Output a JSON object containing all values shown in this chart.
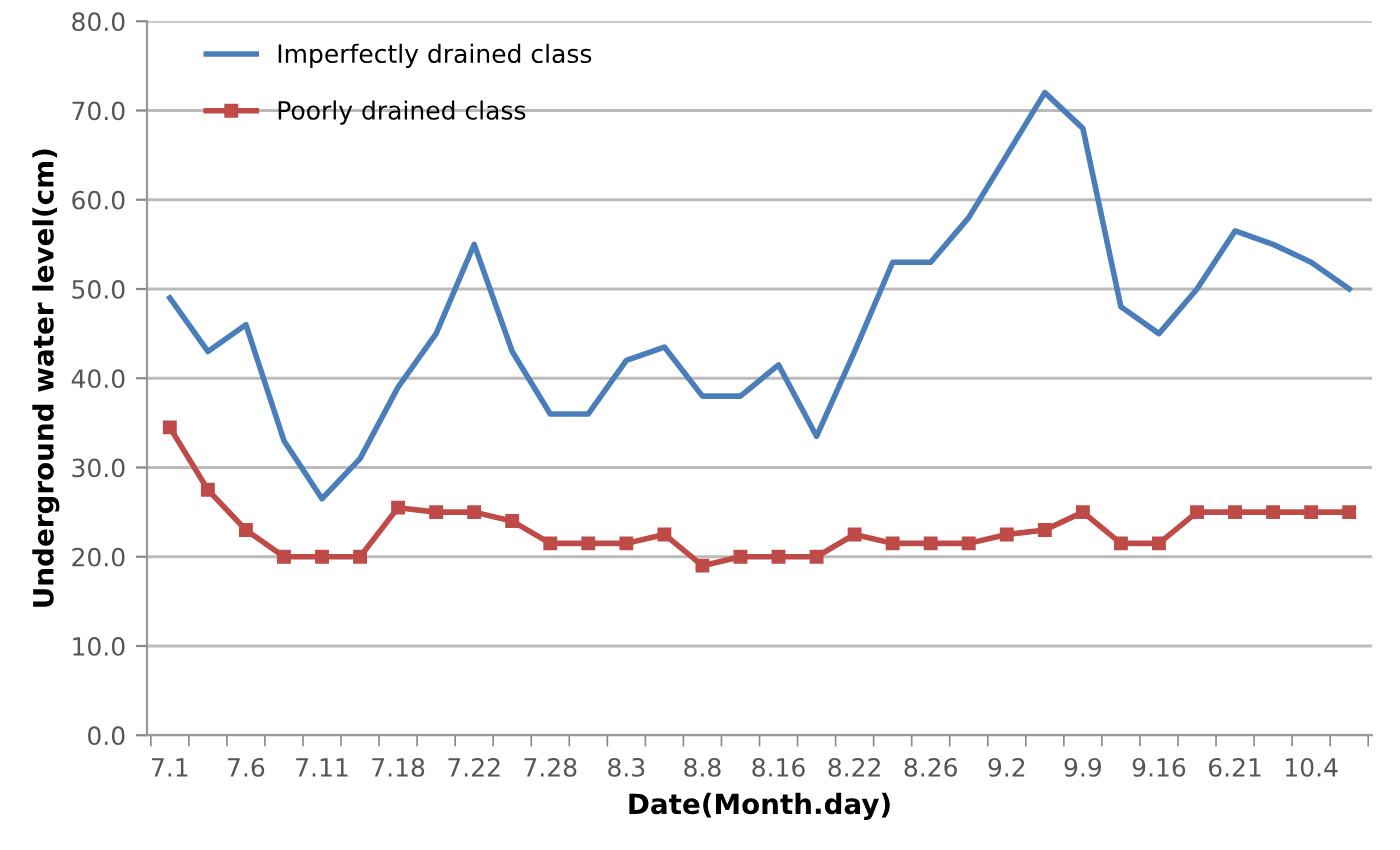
{
  "chart_data": {
    "type": "line",
    "xlabel": "Date(Month.day)",
    "ylabel": "Underground water level(cm)",
    "categories": [
      "7.1",
      null,
      "7.6",
      null,
      "7.11",
      null,
      "7.18",
      null,
      "7.22",
      null,
      "7.28",
      null,
      "8.3",
      null,
      "8.8",
      null,
      "8.16",
      null,
      "8.22",
      null,
      "8.26",
      null,
      "9.2",
      null,
      "9.9",
      null,
      "9.16",
      null,
      "6.21",
      null,
      "10.4",
      null
    ],
    "series": [
      {
        "name": "Imperfectly drained class",
        "color": "#4a7ebb",
        "marker": "none",
        "values": [
          49,
          43,
          46,
          33,
          26.5,
          31,
          39,
          45,
          55,
          43,
          36,
          36,
          42,
          43.5,
          38,
          38,
          41.5,
          33.5,
          43,
          53,
          53,
          58,
          65,
          72,
          68,
          48,
          45,
          50,
          56.5,
          55,
          53,
          50
        ]
      },
      {
        "name": "Poorly drained class",
        "color": "#be4b48",
        "marker": "square",
        "values": [
          34.5,
          27.5,
          23,
          20,
          20,
          20,
          25.5,
          25,
          25,
          24,
          21.5,
          21.5,
          21.5,
          22.5,
          19,
          20,
          20,
          20,
          22.5,
          21.5,
          21.5,
          21.5,
          22.5,
          23,
          25,
          21.5,
          21.5,
          25,
          25,
          25,
          25,
          25
        ]
      }
    ],
    "ylim": [
      0,
      80
    ],
    "yticks": [
      {
        "value": 0,
        "label": "0.0"
      },
      {
        "value": 10,
        "label": "10.0"
      },
      {
        "value": 20,
        "label": "20.0"
      },
      {
        "value": 30,
        "label": "30.0"
      },
      {
        "value": 40,
        "label": "40.0"
      },
      {
        "value": 50,
        "label": "50.0"
      },
      {
        "value": 60,
        "label": "60.0"
      },
      {
        "value": 70,
        "label": "70.0"
      },
      {
        "value": 80,
        "label": "80.0"
      }
    ],
    "grid": "y",
    "legend": "top left"
  }
}
